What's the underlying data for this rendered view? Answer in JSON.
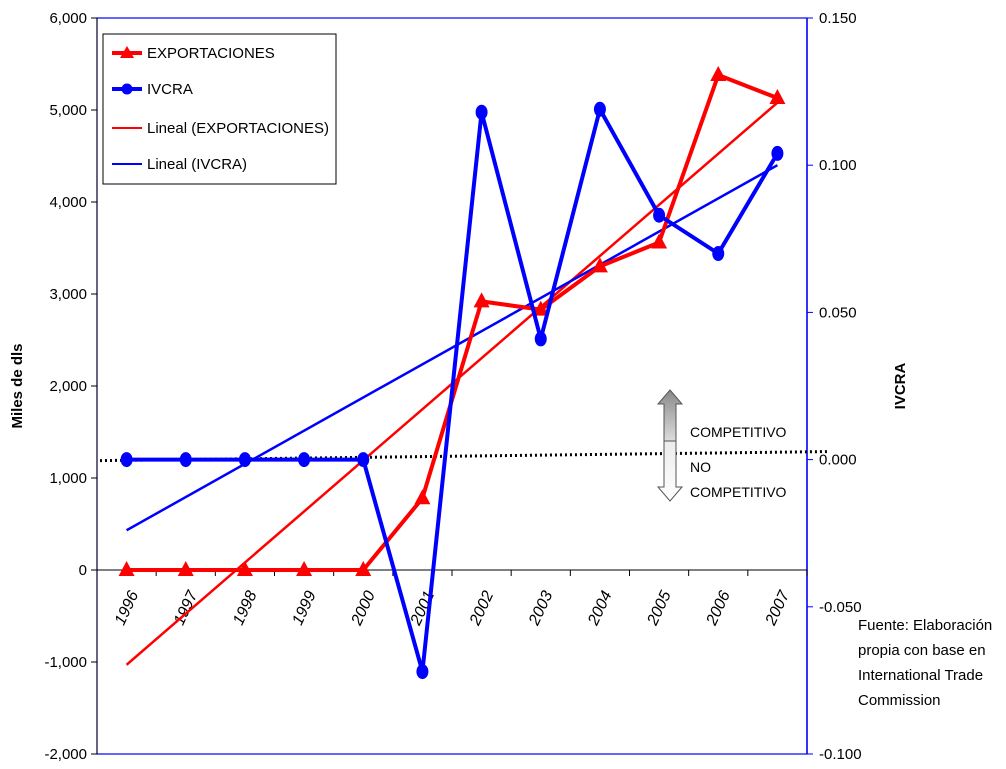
{
  "chart_data": {
    "type": "line",
    "categories": [
      "1996",
      "1997",
      "1998",
      "1999",
      "2000",
      "2001",
      "2002",
      "2003",
      "2004",
      "2005",
      "2006",
      "2007"
    ],
    "left_axis": {
      "label": "Miles de dls",
      "range": [
        -2000,
        6000
      ],
      "ticks": [
        "6,000",
        "5,000",
        "4,000",
        "3,000",
        "2,000",
        "1,000",
        "0",
        "-1,000",
        "-2,000"
      ]
    },
    "right_axis": {
      "label": "IVCRA",
      "range": [
        -0.1,
        0.15
      ],
      "ticks": [
        "0.150",
        "0.100",
        "0.050",
        "0.000",
        "-0.050",
        "-0.100"
      ]
    },
    "series": [
      {
        "name": "EXPORTACIONES",
        "axis": "left",
        "marker": "triangle",
        "color": "#ff0000",
        "values": [
          0,
          0,
          0,
          0,
          0,
          780,
          2920,
          2830,
          3300,
          3560,
          5380,
          5130
        ]
      },
      {
        "name": "IVCRA",
        "axis": "right",
        "marker": "circle",
        "color": "#0000ff",
        "values": [
          0.0,
          0.0,
          0.0,
          0.0,
          0.0,
          -0.072,
          0.118,
          0.041,
          0.119,
          0.083,
          0.07,
          0.104
        ]
      }
    ],
    "trendlines": [
      {
        "name": "Lineal (EXPORTACIONES)",
        "axis": "left",
        "color": "#ff0000",
        "start": -1030,
        "end": 5080
      },
      {
        "name": "Lineal (IVCRA)",
        "axis": "right",
        "color": "#0000ff",
        "start": -0.024,
        "end": 0.1
      }
    ],
    "reference_line": {
      "axis": "right",
      "value": 0.0,
      "style": "dotted"
    },
    "annotations": {
      "up": "COMPETITIVO",
      "down_line1": "NO",
      "down_line2": "COMPETITIVO"
    },
    "legend": {
      "placement": "top-left",
      "entries": [
        "EXPORTACIONES",
        "IVCRA",
        "Lineal (EXPORTACIONES)",
        "Lineal (IVCRA)"
      ]
    }
  },
  "source_note": [
    "Fuente: Elaboración",
    "propia con base en",
    "International Trade",
    "Commission"
  ]
}
